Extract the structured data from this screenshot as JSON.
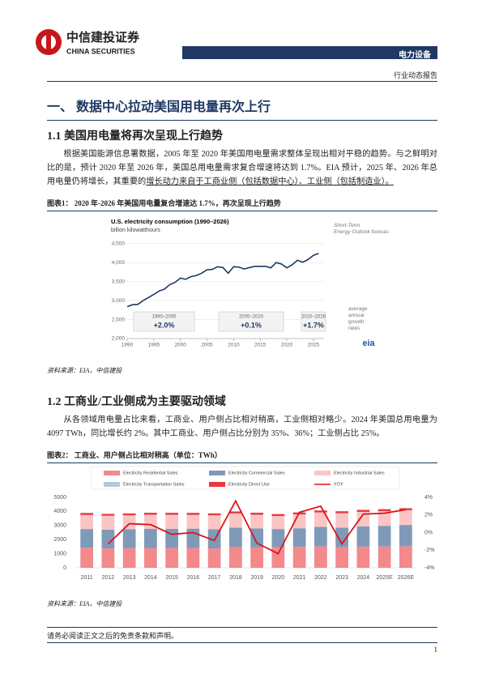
{
  "header": {
    "company": "中信建投证券",
    "company_en": "CHINA SECURITIES",
    "sector": "电力设备",
    "report_type": "行业动态报告"
  },
  "section_title": "一、 数据中心拉动美国用电量再次上行",
  "subsections": [
    {
      "title": "1.1 美国用电量将再次呈现上行趋势",
      "paragraph": "根据美国能源信息署数据，2005 年至 2020 年美国用电量需求整体呈现出相对平稳的趋势。与之鲜明对比的是，预计 2020 年至 2026 年，美国总用电量需求复合增速将达到 1.7%。EIA 预计，2025 年、2026 年总用电量仍将增长，其重要的",
      "paragraph_underlined": "增长动力来自于工商业侧（包括数据中心）、工业侧（包括制造业）。",
      "caption": "图表1：  2020 年-2026 年美国用电量复合增速达 1.7%，再次呈现上行趋势",
      "source": "资料来源：EIA，中信建投"
    },
    {
      "title": "1.2 工商业/工业侧成为主要驱动领域",
      "paragraph": "从各领域用电量占比来看，工商业、用户侧占比相对稍高，工业侧相对略少。2024 年美国总用电量为 4097 TWh，同比增长约 2%。其中工商业、用户侧占比分别为 35%、36%；工业侧占比 25%。",
      "caption": "图表2：  工商业、用户侧占比相对稍高（单位：TWh）",
      "source": "资料来源：EIA，中信建投"
    }
  ],
  "chart_data": [
    {
      "type": "line",
      "title": "U.S. electricity consumption (1990–2026)",
      "subtitle": "billion kilowatthours",
      "x": [
        1990,
        1991,
        1992,
        1993,
        1994,
        1995,
        1996,
        1997,
        1998,
        1999,
        2000,
        2001,
        2002,
        2003,
        2004,
        2005,
        2006,
        2007,
        2008,
        2009,
        2010,
        2011,
        2012,
        2013,
        2014,
        2015,
        2016,
        2017,
        2018,
        2019,
        2020,
        2021,
        2022,
        2023,
        2024,
        2025,
        2026
      ],
      "series": [
        {
          "name": "U.S. electricity consumption",
          "color": "#1f3864",
          "values": [
            2840,
            2890,
            2900,
            3000,
            3080,
            3160,
            3250,
            3300,
            3420,
            3480,
            3590,
            3560,
            3630,
            3660,
            3720,
            3810,
            3820,
            3890,
            3870,
            3720,
            3890,
            3880,
            3830,
            3870,
            3900,
            3900,
            3900,
            3860,
            4000,
            3960,
            3860,
            3940,
            4060,
            4010,
            4080,
            4190,
            4240
          ]
        }
      ],
      "xlim": [
        1990,
        2027
      ],
      "xticks": [
        1990,
        1995,
        2000,
        2005,
        2010,
        2015,
        2020,
        2025
      ],
      "ylim": [
        2000,
        4600
      ],
      "yticks": [
        {
          "value": 2000,
          "label": "2,000"
        },
        {
          "value": 2500,
          "label": "2,500"
        },
        {
          "value": 3000,
          "label": "3,000"
        },
        {
          "value": 3500,
          "label": "3,500"
        },
        {
          "value": 4000,
          "label": "4,000"
        },
        {
          "value": 4500,
          "label": "4,500"
        }
      ],
      "grid": true,
      "forecast_note": "Short-Term Energy Outlook forecast",
      "growth_note": "average annual growth rates",
      "growth_boxes": [
        {
          "period": "1990–2005",
          "rate": "+2.0%"
        },
        {
          "period": "2005–2020",
          "rate": "+0.1%"
        },
        {
          "period": "2020–2026",
          "rate": "+1.7%"
        }
      ],
      "logo": "eia"
    },
    {
      "type": "bar-line",
      "stacked": true,
      "categories": [
        "2011",
        "2012",
        "2013",
        "2014",
        "2015",
        "2016",
        "2017",
        "2018",
        "2019",
        "2020",
        "2021",
        "2022",
        "2023",
        "2024",
        "2025E",
        "2026E"
      ],
      "series": [
        {
          "name": "Electricity Residential Sales",
          "color": "#f4898c",
          "values": [
            1423,
            1375,
            1394,
            1407,
            1404,
            1411,
            1378,
            1469,
            1440,
            1464,
            1477,
            1509,
            1452,
            1500,
            1510,
            1530
          ]
        },
        {
          "name": "Electricity Commercial Sales",
          "color": "#7f9ab8",
          "values": [
            1328,
            1327,
            1337,
            1352,
            1361,
            1367,
            1353,
            1382,
            1361,
            1287,
            1328,
            1391,
            1402,
            1440,
            1470,
            1510
          ]
        },
        {
          "name": "Electricity Industrial Sales",
          "color": "#fbc5c5",
          "values": [
            991,
            986,
            985,
            998,
            987,
            970,
            986,
            1000,
            958,
            915,
            978,
            1020,
            1010,
            1020,
            1030,
            1040
          ]
        },
        {
          "name": "Electricity Transportation Sales",
          "color": "#b4c7dc",
          "values": [
            8,
            7,
            8,
            8,
            8,
            7,
            7,
            8,
            7,
            6,
            6,
            7,
            7,
            7,
            7,
            7
          ]
        },
        {
          "name": "Electricity Direct Use",
          "color": "#e8383d",
          "values": [
            139,
            132,
            133,
            139,
            141,
            140,
            137,
            138,
            139,
            138,
            138,
            139,
            140,
            140,
            140,
            140
          ]
        },
        {
          "name": "YOY",
          "color": "#d9141b",
          "axis": "y2",
          "type": "line",
          "values": [
            null,
            -1.3,
            1.0,
            0.9,
            -0.2,
            0.0,
            -0.9,
            3.6,
            -1.2,
            -2.4,
            2.3,
            3.0,
            -1.3,
            2.1,
            2.2,
            2.6
          ]
        }
      ],
      "ylim": [
        0,
        5000
      ],
      "yticks": [
        0,
        1000,
        2000,
        3000,
        4000,
        5000
      ],
      "y2lim": [
        -4,
        4
      ],
      "y2ticks": [
        {
          "value": -4,
          "label": "-4%"
        },
        {
          "value": -2,
          "label": "-2%"
        },
        {
          "value": 0,
          "label": "0%"
        },
        {
          "value": 2,
          "label": "2%"
        },
        {
          "value": 4,
          "label": "4%"
        }
      ],
      "grid": false,
      "legend": "top"
    }
  ],
  "footer": {
    "disclaimer": "请务必阅读正文之后的免责条款和声明。",
    "page": "1"
  }
}
